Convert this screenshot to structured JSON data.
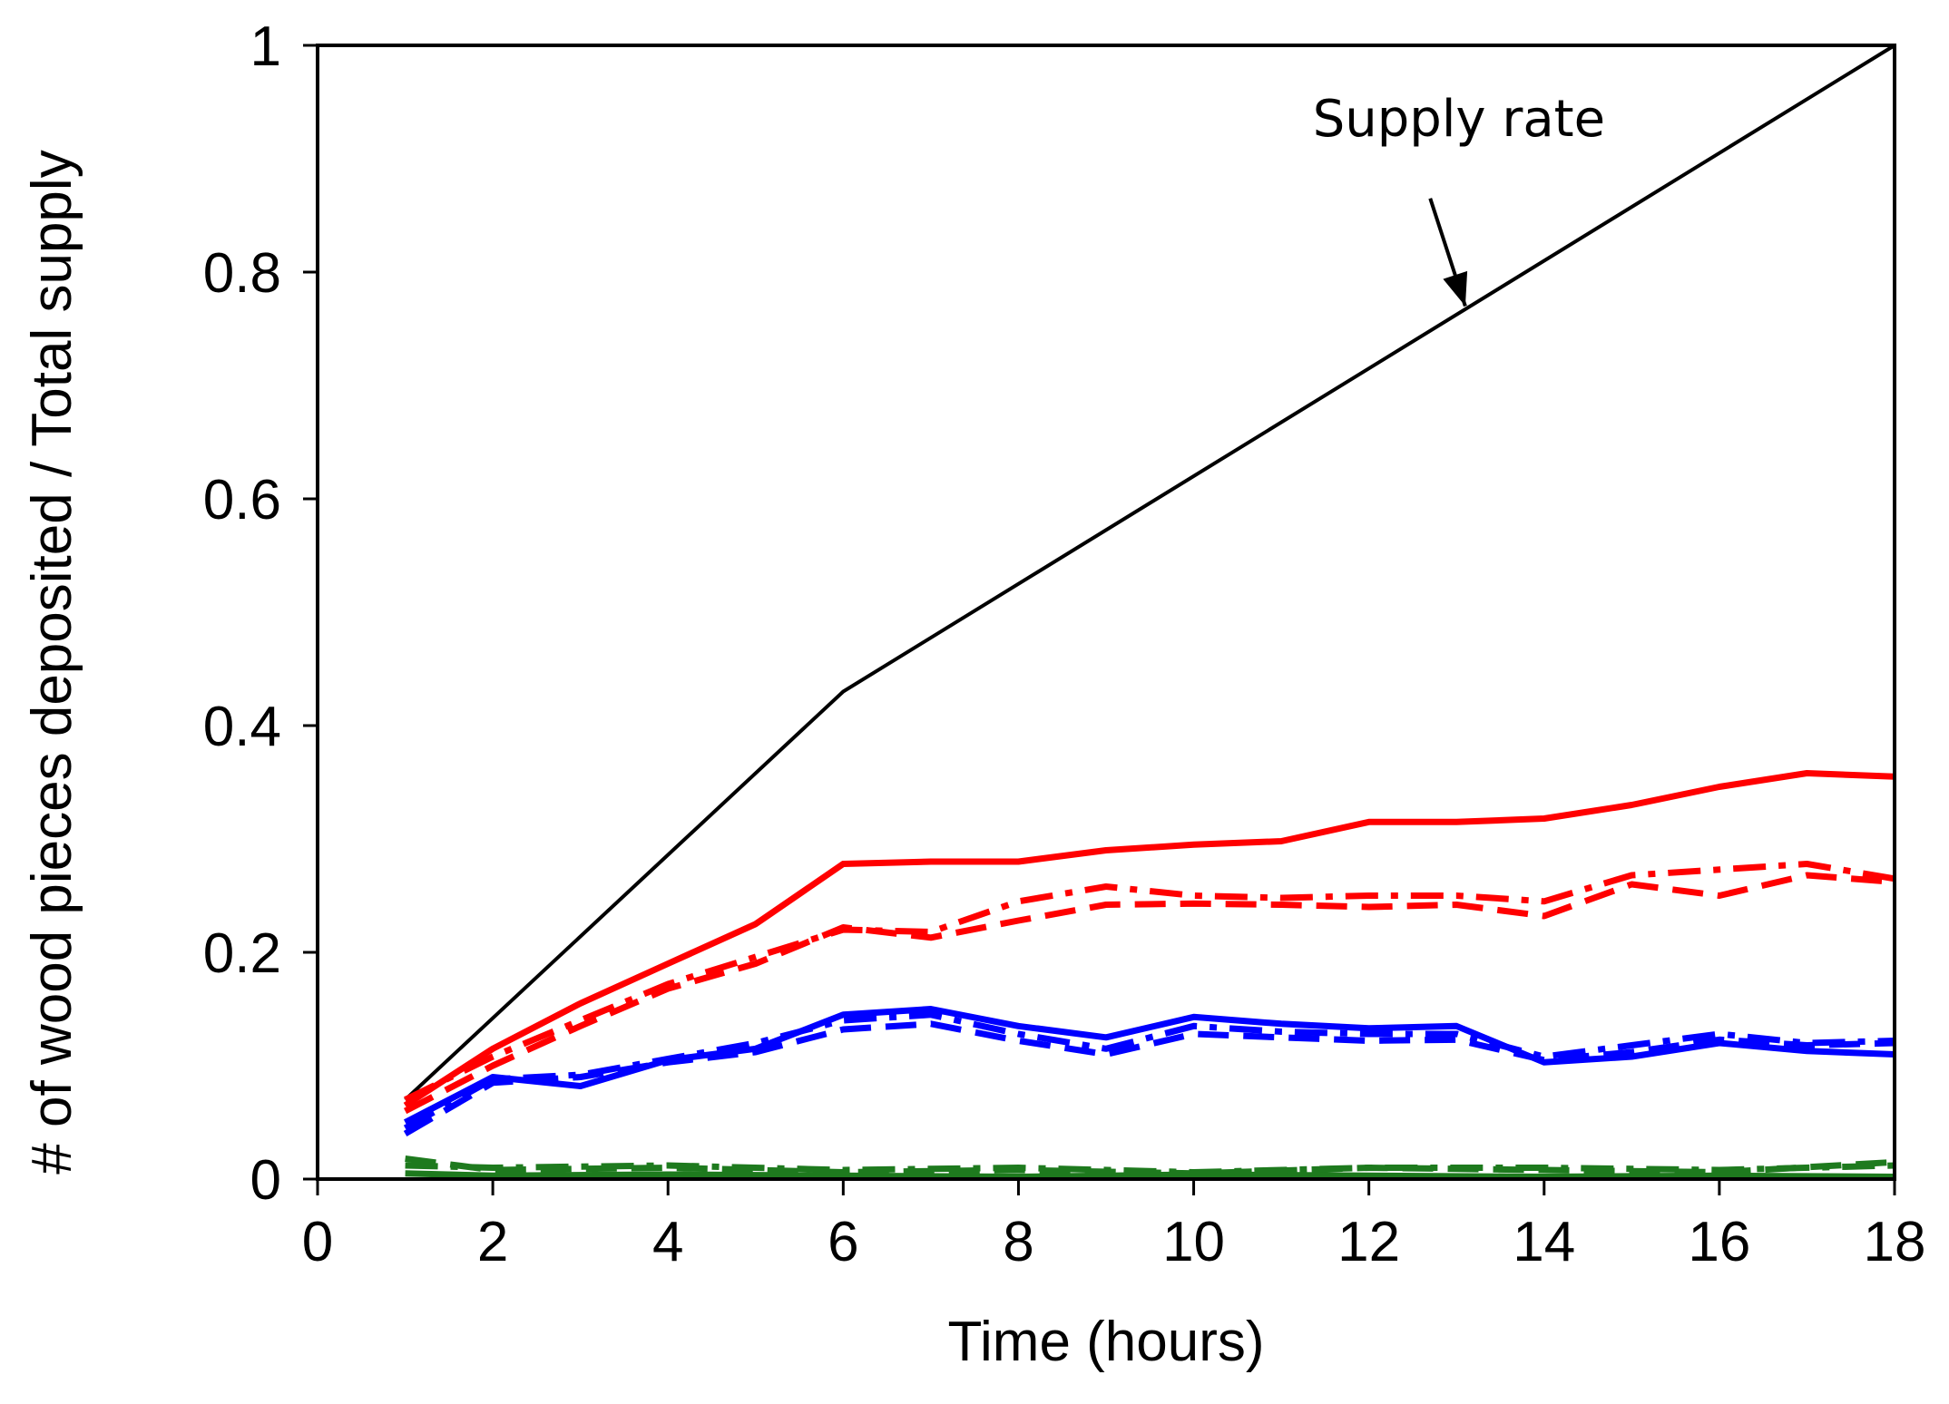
{
  "chart_data": {
    "type": "line",
    "title": "",
    "xlabel": "Time (hours)",
    "ylabel": "# of wood pieces deposited / Total supply",
    "xlim": [
      0,
      18
    ],
    "ylim": [
      0,
      1
    ],
    "xticks": [
      0,
      2,
      4,
      6,
      8,
      10,
      12,
      14,
      16,
      18
    ],
    "yticks": [
      0,
      0.2,
      0.4,
      0.6,
      0.8,
      1
    ],
    "ytick_labels": [
      "0",
      "0.2",
      "0.4",
      "0.6",
      "0.8",
      "1"
    ],
    "grid": false,
    "legend": "none",
    "annotations": [
      {
        "text": "Supply rate",
        "points_to": {
          "x": 13.1,
          "y": 0.77
        }
      }
    ],
    "series": [
      {
        "name": "Supply rate",
        "color": "#000000",
        "dash": "solid",
        "x": [
          1,
          6,
          18
        ],
        "y": [
          0.07,
          0.43,
          1.0
        ]
      },
      {
        "name": "Red solid",
        "color": "#ff0000",
        "dash": "solid",
        "x": [
          1,
          2,
          3,
          4,
          5,
          6,
          7,
          8,
          9,
          10,
          11,
          12,
          13,
          14,
          15,
          16,
          17,
          18
        ],
        "y": [
          0.065,
          0.115,
          0.155,
          0.19,
          0.225,
          0.278,
          0.28,
          0.28,
          0.29,
          0.295,
          0.298,
          0.315,
          0.315,
          0.318,
          0.33,
          0.346,
          0.358,
          0.355
        ]
      },
      {
        "name": "Red dashed",
        "color": "#ff0000",
        "dash": "dashed",
        "x": [
          1,
          2,
          3,
          4,
          5,
          6,
          7,
          8,
          9,
          10,
          11,
          12,
          13,
          14,
          15,
          16,
          17,
          18
        ],
        "y": [
          0.06,
          0.1,
          0.135,
          0.168,
          0.19,
          0.222,
          0.213,
          0.228,
          0.242,
          0.243,
          0.242,
          0.24,
          0.242,
          0.232,
          0.26,
          0.25,
          0.268,
          0.262
        ]
      },
      {
        "name": "Red dash-dot",
        "color": "#ff0000",
        "dash": "dashdot",
        "x": [
          1,
          2,
          3,
          4,
          5,
          6,
          7,
          8,
          9,
          10,
          11,
          12,
          13,
          14,
          15,
          16,
          17,
          18
        ],
        "y": [
          0.07,
          0.108,
          0.14,
          0.172,
          0.196,
          0.22,
          0.218,
          0.245,
          0.258,
          0.25,
          0.248,
          0.25,
          0.25,
          0.245,
          0.268,
          0.273,
          0.278,
          0.265
        ]
      },
      {
        "name": "Blue solid",
        "color": "#0000ff",
        "dash": "solid",
        "x": [
          1,
          2,
          3,
          4,
          5,
          6,
          7,
          8,
          9,
          10,
          11,
          12,
          13,
          14,
          15,
          16,
          17,
          18
        ],
        "y": [
          0.05,
          0.09,
          0.082,
          0.105,
          0.115,
          0.145,
          0.15,
          0.135,
          0.125,
          0.143,
          0.137,
          0.133,
          0.135,
          0.103,
          0.108,
          0.12,
          0.113,
          0.11
        ]
      },
      {
        "name": "Blue dashed",
        "color": "#0000ff",
        "dash": "dashed",
        "x": [
          1,
          2,
          3,
          4,
          5,
          6,
          7,
          8,
          9,
          10,
          11,
          12,
          13,
          14,
          15,
          16,
          17,
          18
        ],
        "y": [
          0.04,
          0.085,
          0.09,
          0.103,
          0.112,
          0.132,
          0.137,
          0.122,
          0.11,
          0.128,
          0.125,
          0.122,
          0.123,
          0.105,
          0.112,
          0.123,
          0.118,
          0.12
        ]
      },
      {
        "name": "Blue dash-dot",
        "color": "#0000ff",
        "dash": "dashdot",
        "x": [
          1,
          2,
          3,
          4,
          5,
          6,
          7,
          8,
          9,
          10,
          11,
          12,
          13,
          14,
          15,
          16,
          17,
          18
        ],
        "y": [
          0.045,
          0.088,
          0.092,
          0.106,
          0.12,
          0.14,
          0.145,
          0.128,
          0.115,
          0.135,
          0.13,
          0.128,
          0.128,
          0.108,
          0.118,
          0.128,
          0.12,
          0.122
        ]
      },
      {
        "name": "Green solid",
        "color": "#1e7a1e",
        "dash": "solid",
        "x": [
          1,
          2,
          4,
          6,
          8,
          10,
          12,
          14,
          16,
          18
        ],
        "y": [
          0.005,
          0.003,
          0.004,
          0.003,
          0.002,
          0.004,
          0.003,
          0.002,
          0.003,
          0.002
        ]
      },
      {
        "name": "Green dashed",
        "color": "#1e7a1e",
        "dash": "dashed",
        "x": [
          1,
          2,
          4,
          6,
          8,
          10,
          12,
          14,
          16,
          18
        ],
        "y": [
          0.018,
          0.008,
          0.01,
          0.006,
          0.008,
          0.005,
          0.01,
          0.008,
          0.006,
          0.015
        ]
      },
      {
        "name": "Green dash-dot",
        "color": "#1e7a1e",
        "dash": "dashdot",
        "x": [
          1,
          2,
          4,
          6,
          8,
          10,
          12,
          14,
          16,
          18
        ],
        "y": [
          0.012,
          0.01,
          0.012,
          0.008,
          0.01,
          0.006,
          0.01,
          0.01,
          0.008,
          0.012
        ]
      }
    ]
  }
}
